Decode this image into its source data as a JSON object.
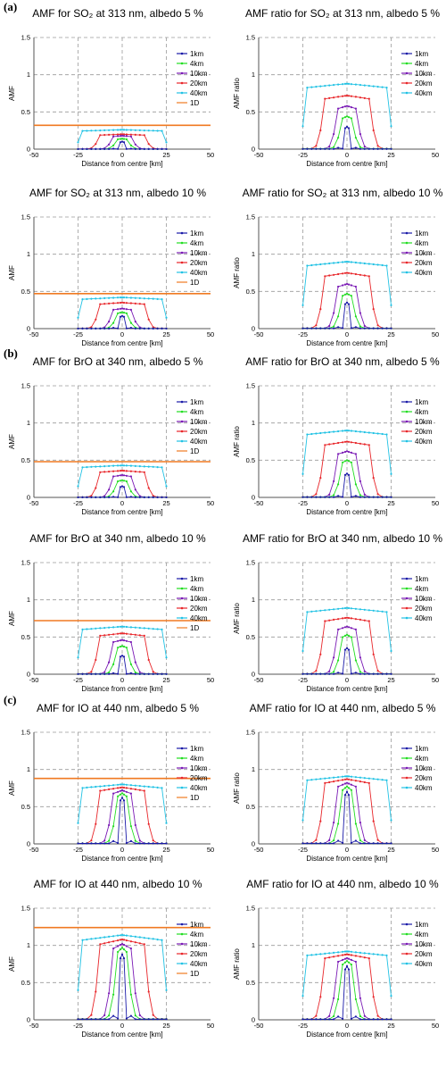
{
  "colors": {
    "1km": "#1a1aa8",
    "4km": "#22dd22",
    "10km": "#7a1ab5",
    "20km": "#e8262a",
    "40km": "#21c2e4",
    "1D": "#f07a22"
  },
  "x_values": [
    -25,
    -22.5,
    -20,
    -17.5,
    -15,
    -12.5,
    -10,
    -7.5,
    -5,
    -2.5,
    -1,
    0,
    1,
    2.5,
    5,
    7.5,
    10,
    12.5,
    15,
    17.5,
    20,
    22.5,
    25
  ],
  "panel_labels": [
    "(a)",
    "(b)",
    "(c)"
  ],
  "chart_data": [
    {
      "type": "line",
      "title": "AMF for SO₂ at 313 nm, albedo 5 %",
      "xlabel": "Distance from centre [km]",
      "ylabel": "AMF",
      "xlim": [
        -50,
        50
      ],
      "ylim": [
        0,
        1.5
      ],
      "xticks": [
        "-50",
        "-25",
        "0",
        "25",
        "50"
      ],
      "yticks": [
        "0",
        "0.5",
        "1",
        "1.5"
      ],
      "legend": [
        "1km",
        "4km",
        "10km",
        "20km",
        "40km",
        "1D"
      ],
      "peaks": {
        "1km": 0.1,
        "4km": 0.14,
        "10km": 0.18,
        "20km": 0.2,
        "40km": 0.26
      },
      "line_1D": 0.32
    },
    {
      "type": "line",
      "title": "AMF ratio for SO₂ at 313 nm, albedo 5 %",
      "xlabel": "Distance from centre [km]",
      "ylabel": "AMF ratio",
      "xlim": [
        -50,
        50
      ],
      "ylim": [
        0,
        1.5
      ],
      "xticks": [
        "-50",
        "-25",
        "0",
        "25",
        "50"
      ],
      "yticks": [
        "0",
        "0.5",
        "1",
        "1.5"
      ],
      "legend": [
        "1km",
        "4km",
        "10km",
        "20km",
        "40km"
      ],
      "peaks": {
        "1km": 0.3,
        "4km": 0.44,
        "10km": 0.58,
        "20km": 0.72,
        "40km": 0.88
      }
    },
    {
      "type": "line",
      "title": "AMF for SO₂ at 313 nm, albedo 10 %",
      "xlabel": "Distance from centre [km]",
      "ylabel": "AMF",
      "xlim": [
        -50,
        50
      ],
      "ylim": [
        0,
        1.5
      ],
      "xticks": [
        "-50",
        "-25",
        "0",
        "25",
        "50"
      ],
      "yticks": [
        "0",
        "0.5",
        "1",
        "1.5"
      ],
      "legend": [
        "1km",
        "4km",
        "10km",
        "20km",
        "40km",
        "1D"
      ],
      "peaks": {
        "1km": 0.17,
        "4km": 0.22,
        "10km": 0.27,
        "20km": 0.35,
        "40km": 0.42
      },
      "line_1D": 0.47
    },
    {
      "type": "line",
      "title": "AMF ratio for SO₂ at 313 nm, albedo 10 %",
      "xlabel": "Distance from centre [km]",
      "ylabel": "AMF ratio",
      "xlim": [
        -50,
        50
      ],
      "ylim": [
        0,
        1.5
      ],
      "xticks": [
        "-50",
        "-25",
        "0",
        "25",
        "50"
      ],
      "yticks": [
        "0",
        "0.5",
        "1",
        "1.5"
      ],
      "legend": [
        "1km",
        "4km",
        "10km",
        "20km",
        "40km"
      ],
      "peaks": {
        "1km": 0.35,
        "4km": 0.47,
        "10km": 0.6,
        "20km": 0.75,
        "40km": 0.9
      }
    },
    {
      "type": "line",
      "title": "AMF for BrO at 340 nm, albedo 5 %",
      "xlabel": "Distance from centre [km]",
      "ylabel": "AMF",
      "xlim": [
        -50,
        50
      ],
      "ylim": [
        0,
        1.5
      ],
      "xticks": [
        "-50",
        "-25",
        "0",
        "25",
        "50"
      ],
      "yticks": [
        "0",
        "0.5",
        "1",
        "1.5"
      ],
      "legend": [
        "1km",
        "4km",
        "10km",
        "20km",
        "40km",
        "1D"
      ],
      "peaks": {
        "1km": 0.15,
        "4km": 0.23,
        "10km": 0.3,
        "20km": 0.36,
        "40km": 0.43
      },
      "line_1D": 0.48
    },
    {
      "type": "line",
      "title": "AMF ratio for BrO at 340 nm, albedo 5 %",
      "xlabel": "Distance from centre [km]",
      "ylabel": "AMF ratio",
      "xlim": [
        -50,
        50
      ],
      "ylim": [
        0,
        1.5
      ],
      "xticks": [
        "-50",
        "-25",
        "0",
        "25",
        "50"
      ],
      "yticks": [
        "0",
        "0.5",
        "1",
        "1.5"
      ],
      "legend": [
        "1km",
        "4km",
        "10km",
        "20km",
        "40km"
      ],
      "peaks": {
        "1km": 0.32,
        "4km": 0.5,
        "10km": 0.62,
        "20km": 0.75,
        "40km": 0.9
      }
    },
    {
      "type": "line",
      "title": "AMF for BrO at 340 nm, albedo 10 %",
      "xlabel": "Distance from centre [km]",
      "ylabel": "AMF",
      "xlim": [
        -50,
        50
      ],
      "ylim": [
        0,
        1.5
      ],
      "xticks": [
        "-50",
        "-25",
        "0",
        "25",
        "50"
      ],
      "yticks": [
        "0",
        "0.5",
        "1",
        "1.5"
      ],
      "legend": [
        "1km",
        "4km",
        "10km",
        "20km",
        "40km",
        "1D"
      ],
      "peaks": {
        "1km": 0.25,
        "4km": 0.38,
        "10km": 0.46,
        "20km": 0.55,
        "40km": 0.64
      },
      "line_1D": 0.72
    },
    {
      "type": "line",
      "title": "AMF ratio for BrO at 340 nm, albedo 10 %",
      "xlabel": "Distance from centre [km]",
      "ylabel": "AMF ratio",
      "xlim": [
        -50,
        50
      ],
      "ylim": [
        0,
        1.5
      ],
      "xticks": [
        "-50",
        "-25",
        "0",
        "25",
        "50"
      ],
      "yticks": [
        "0",
        "0.5",
        "1",
        "1.5"
      ],
      "legend": [
        "1km",
        "4km",
        "10km",
        "20km",
        "40km"
      ],
      "peaks": {
        "1km": 0.35,
        "4km": 0.53,
        "10km": 0.64,
        "20km": 0.76,
        "40km": 0.89
      }
    },
    {
      "type": "line",
      "title": "AMF for IO at 440 nm, albedo 5 %",
      "xlabel": "Distance from centre [km]",
      "ylabel": "AMF",
      "xlim": [
        -50,
        50
      ],
      "ylim": [
        0,
        1.5
      ],
      "xticks": [
        "-50",
        "-25",
        "0",
        "25",
        "50"
      ],
      "yticks": [
        "0",
        "0.5",
        "1",
        "1.5"
      ],
      "legend": [
        "1km",
        "4km",
        "10km",
        "20km",
        "40km",
        "1D"
      ],
      "peaks": {
        "1km": 0.62,
        "4km": 0.68,
        "10km": 0.72,
        "20km": 0.76,
        "40km": 0.8
      },
      "line_1D": 0.88
    },
    {
      "type": "line",
      "title": "AMF ratio for IO at 440 nm, albedo 5 %",
      "xlabel": "Distance from centre [km]",
      "ylabel": "AMF ratio",
      "xlim": [
        -50,
        50
      ],
      "ylim": [
        0,
        1.5
      ],
      "xticks": [
        "-50",
        "-25",
        "0",
        "25",
        "50"
      ],
      "yticks": [
        "0",
        "0.5",
        "1",
        "1.5"
      ],
      "legend": [
        "1km",
        "4km",
        "10km",
        "20km",
        "40km"
      ],
      "peaks": {
        "1km": 0.7,
        "4km": 0.77,
        "10km": 0.82,
        "20km": 0.87,
        "40km": 0.91
      }
    },
    {
      "type": "line",
      "title": "AMF for IO at 440 nm, albedo 10 %",
      "xlabel": "Distance from centre [km]",
      "ylabel": "AMF",
      "xlim": [
        -50,
        50
      ],
      "ylim": [
        0,
        1.5
      ],
      "xticks": [
        "-50",
        "-25",
        "0",
        "25",
        "50"
      ],
      "yticks": [
        "0",
        "0.5",
        "1",
        "1.5"
      ],
      "legend": [
        "1km",
        "4km",
        "10km",
        "20km",
        "40km",
        "1D"
      ],
      "peaks": {
        "1km": 0.88,
        "4km": 0.97,
        "10km": 1.02,
        "20km": 1.08,
        "40km": 1.14
      },
      "line_1D": 1.24
    },
    {
      "type": "line",
      "title": "AMF ratio for IO at 440 nm, albedo 10 %",
      "xlabel": "Distance from centre [km]",
      "ylabel": "AMF ratio",
      "xlim": [
        -50,
        50
      ],
      "ylim": [
        0,
        1.5
      ],
      "xticks": [
        "-50",
        "-25",
        "0",
        "25",
        "50"
      ],
      "yticks": [
        "0",
        "0.5",
        "1",
        "1.5"
      ],
      "legend": [
        "1km",
        "4km",
        "10km",
        "20km",
        "40km"
      ],
      "peaks": {
        "1km": 0.72,
        "4km": 0.79,
        "10km": 0.83,
        "20km": 0.88,
        "40km": 0.92
      }
    }
  ]
}
